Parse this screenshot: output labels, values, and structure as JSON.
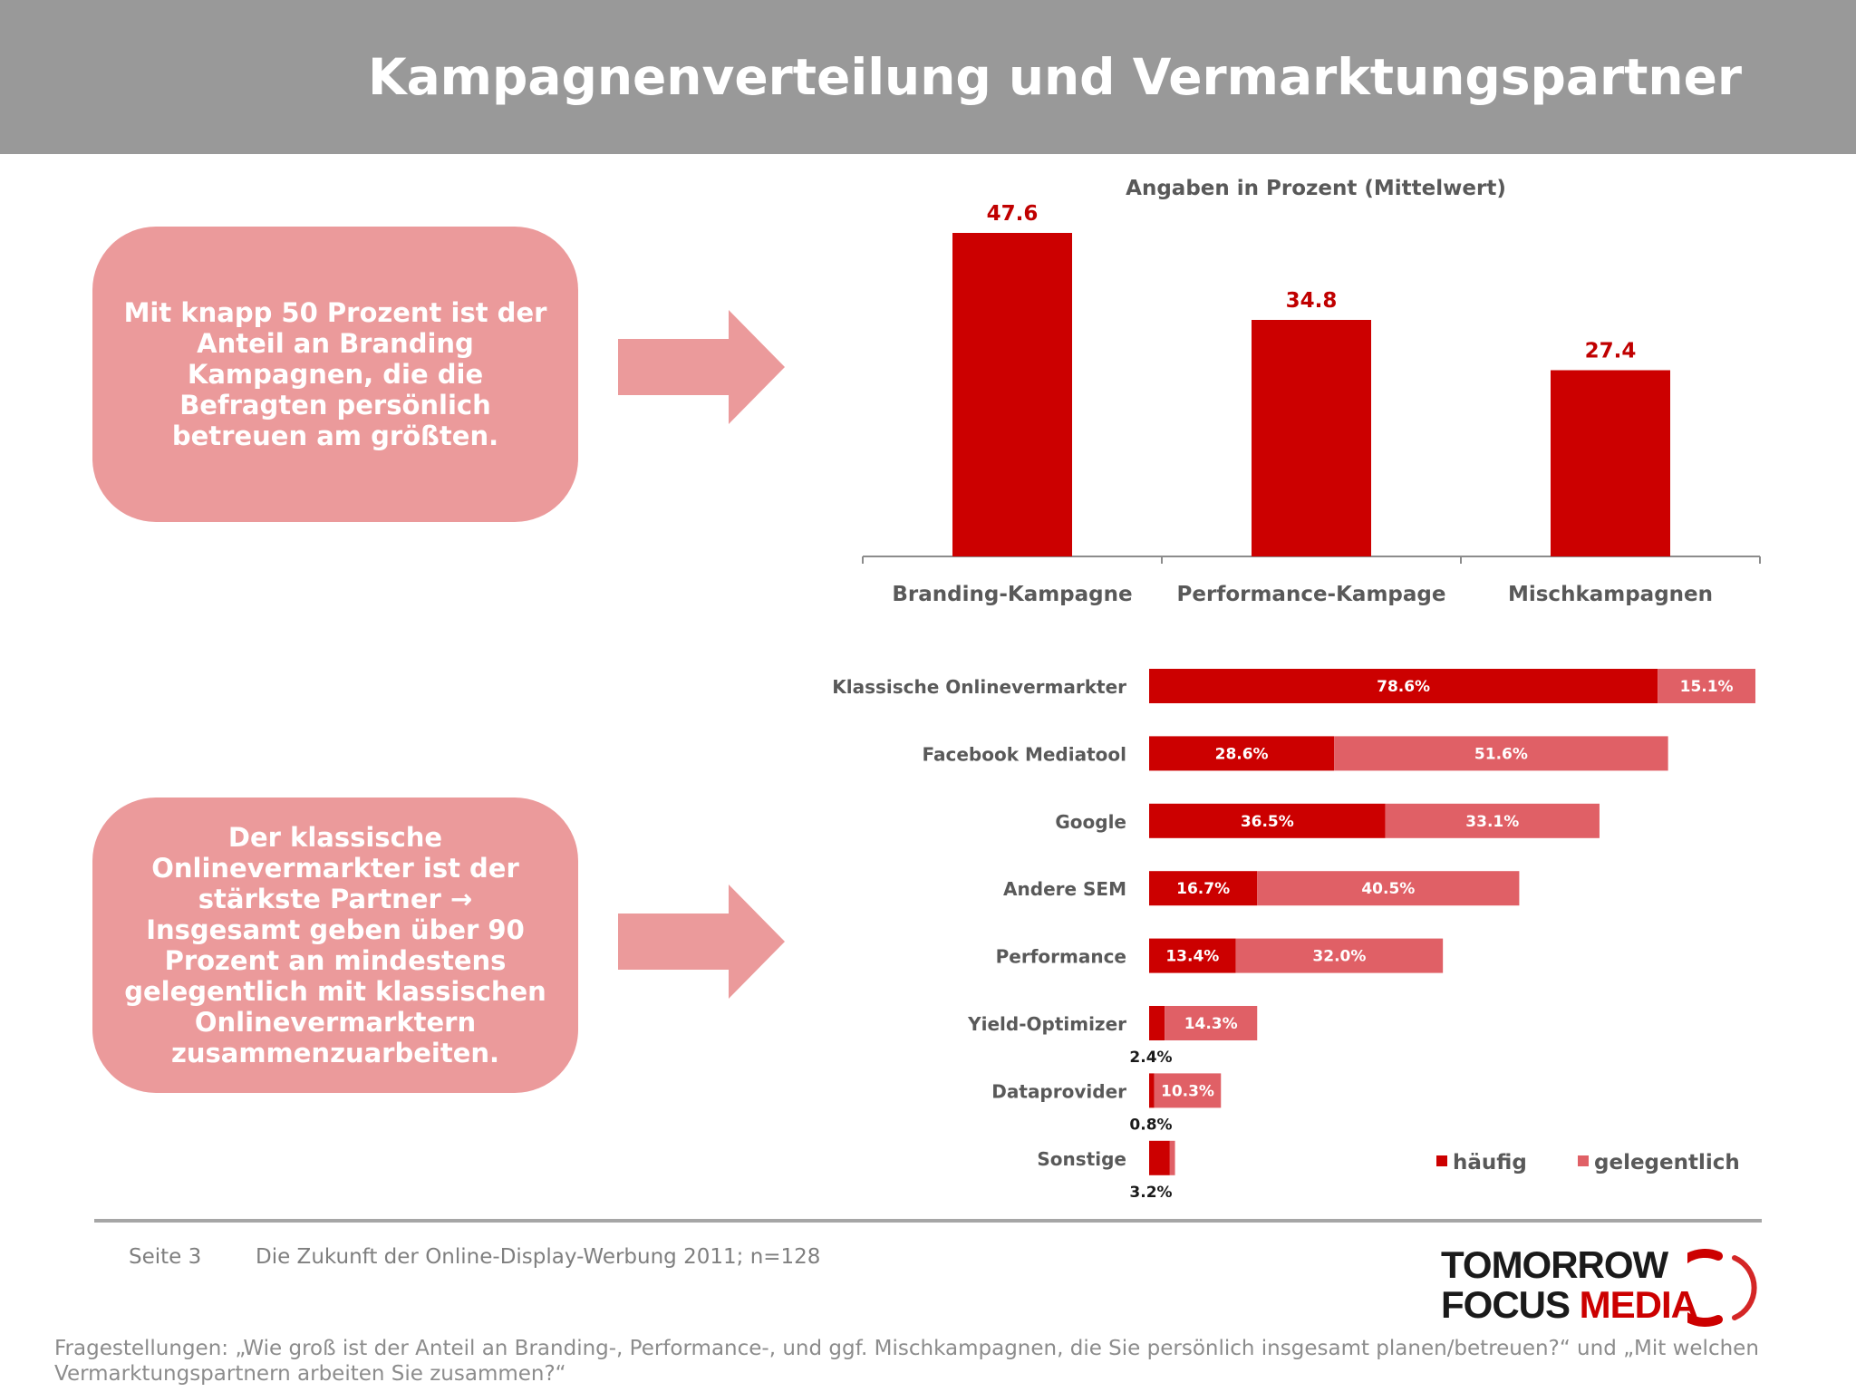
{
  "header": {
    "title": "Kampagnenverteilung und Vermarktungspartner"
  },
  "callouts": [
    {
      "text": "Mit knapp 50 Prozent ist der Anteil an Branding Kampagnen, die die Befragten persönlich betreuen am größten."
    },
    {
      "text": "Der klassische Onlinevermarkter ist der stärkste Partner → Insgesamt geben über 90 Prozent an mindestens gelegentlich mit klassischen Onlinevermarktern zusammenzuarbeiten."
    }
  ],
  "colors": {
    "dark_red": "#cc0000",
    "light_red": "#e06066",
    "callout_pink": "#eb9a9b"
  },
  "chart_data": [
    {
      "type": "bar",
      "title": "Angaben in Prozent (Mittelwert)",
      "categories": [
        "Branding-Kampagne",
        "Performance-Kampage",
        "Mischkampagnen"
      ],
      "values": [
        47.6,
        34.8,
        27.4
      ],
      "value_labels": [
        "47.6",
        "34.8",
        "27.4"
      ],
      "ylim": [
        0,
        50
      ],
      "grid": false
    },
    {
      "type": "bar",
      "orientation": "horizontal",
      "stacked": true,
      "categories": [
        "Klassische Onlinevermarkter",
        "Facebook Mediatool",
        "Google",
        "Andere SEM",
        "Performance",
        "Yield-Optimizer",
        "Dataprovider",
        "Sonstige"
      ],
      "series": [
        {
          "name": "häufig",
          "values": [
            78.6,
            28.6,
            36.5,
            16.7,
            13.4,
            2.4,
            0.8,
            3.2
          ],
          "labels": [
            "78.6%",
            "28.6%",
            "36.5%",
            "16.7%",
            "13.4%",
            "2.4%",
            "0.8%",
            "3.2%"
          ]
        },
        {
          "name": "gelegentlich",
          "values": [
            15.1,
            51.6,
            33.1,
            40.5,
            32.0,
            14.3,
            10.3,
            0.8
          ],
          "labels": [
            "15.1%",
            "51.6%",
            "33.1%",
            "40.5%",
            "32.0%",
            "14.3%",
            "10.3%",
            ""
          ]
        }
      ],
      "xlim": [
        0,
        100
      ],
      "legend": "bottom-right"
    }
  ],
  "footer": {
    "page": "Seite 3",
    "source": "Die Zukunft der Online-Display-Werbung 2011; n=128",
    "logo_line1": "TOMORROW",
    "logo_line2a": "FOCUS ",
    "logo_line2b": "MEDIA",
    "question": "Fragestellungen: „Wie groß ist der Anteil an Branding-, Performance-,  und ggf. Mischkampagnen, die Sie persönlich insgesamt planen/betreuen?“ und „Mit welchen Vermarktungspartnern arbeiten Sie zusammen?“"
  }
}
